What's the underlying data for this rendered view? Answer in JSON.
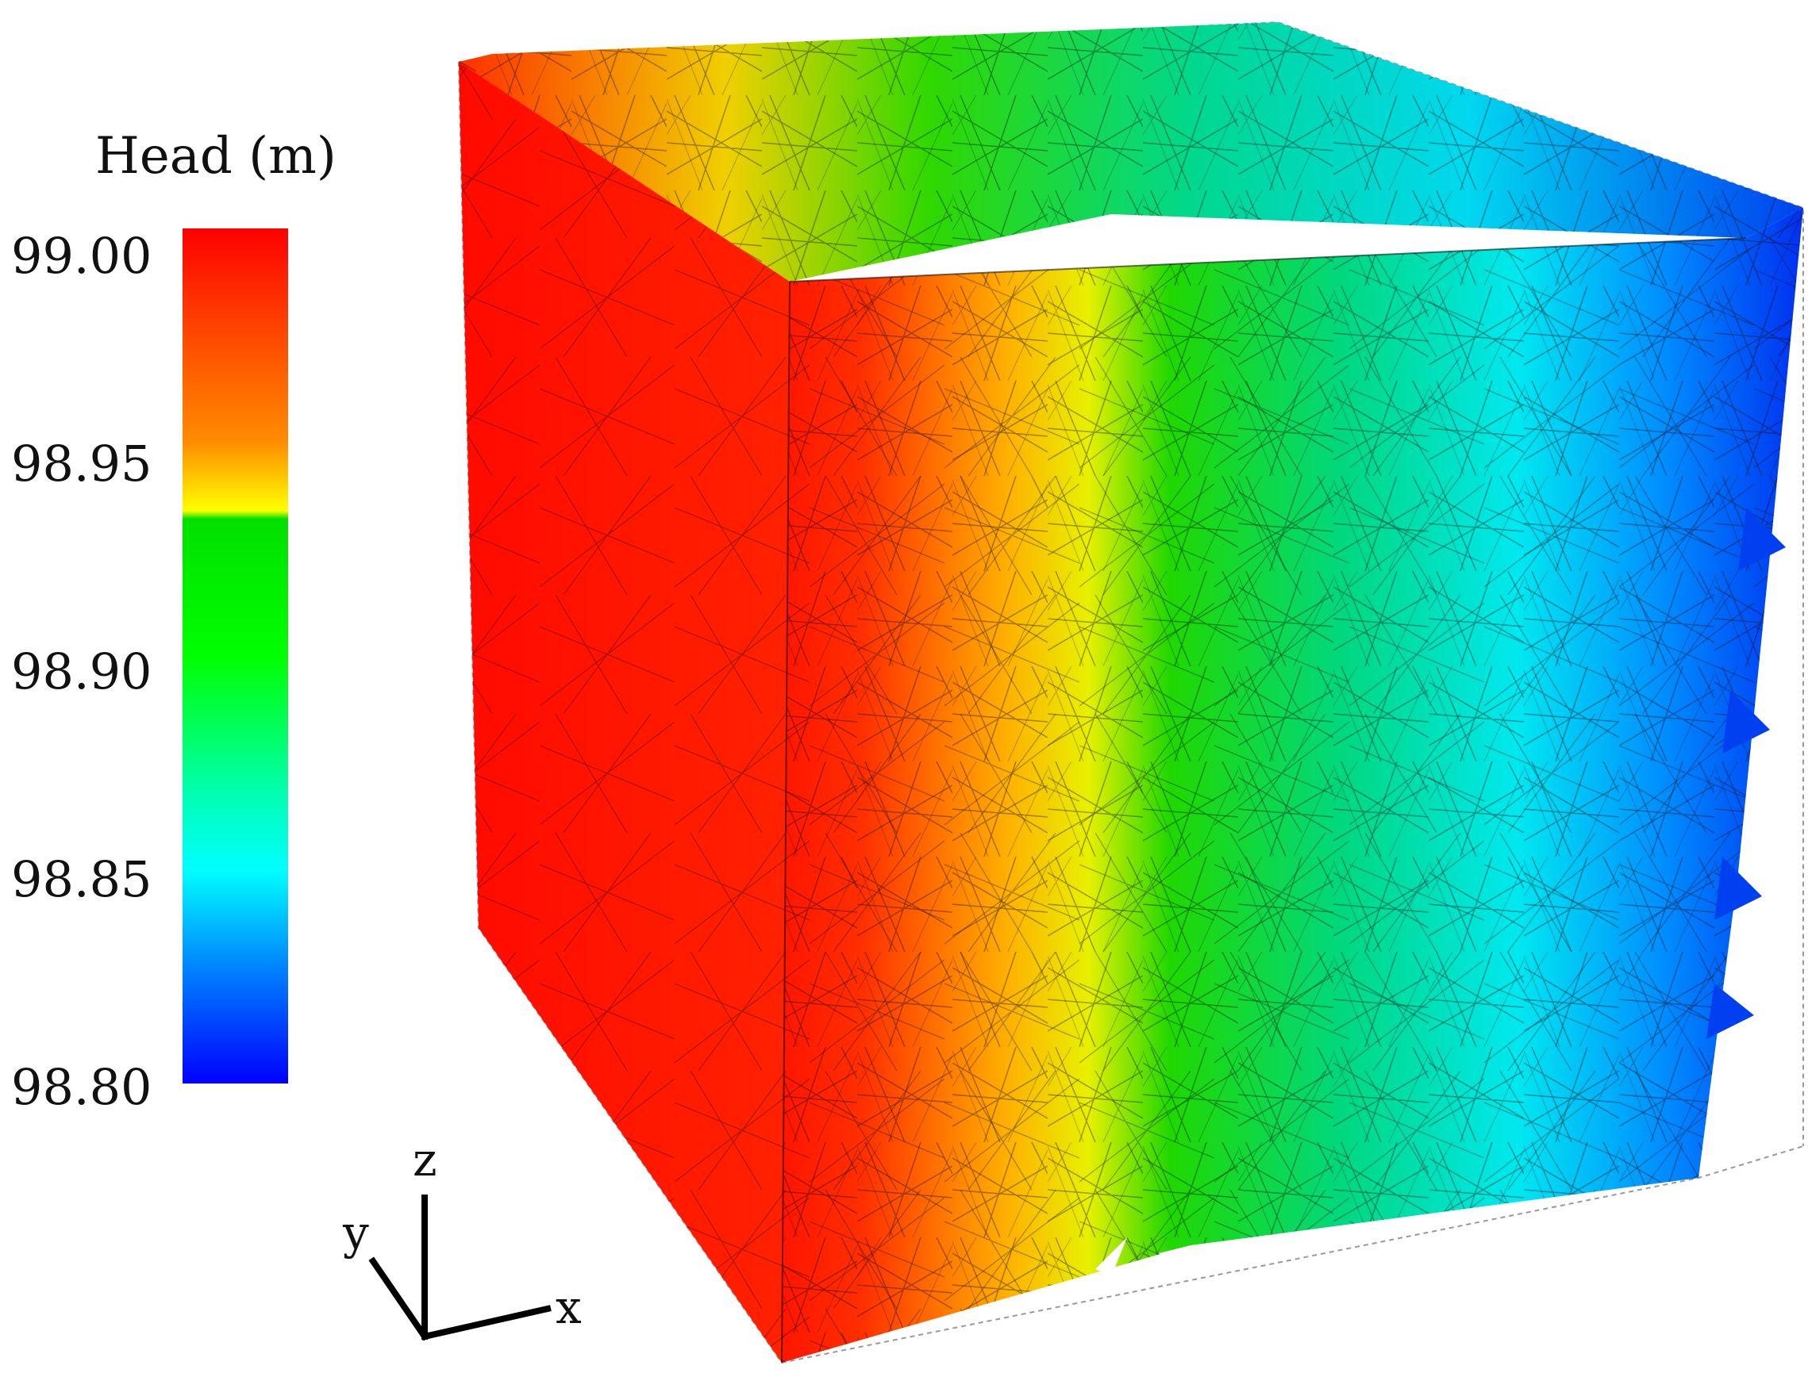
{
  "colorbar": {
    "title": "Head (m)",
    "ticks": [
      "99.00",
      "98.95",
      "98.90",
      "98.85",
      "98.80"
    ],
    "range": [
      98.8,
      99.0
    ],
    "colors": [
      "#0000ff",
      "#00ffff",
      "#00ff00",
      "#ffff00",
      "#ff0000"
    ]
  },
  "axes_triad": {
    "x": "x",
    "y": "y",
    "z": "z"
  }
}
